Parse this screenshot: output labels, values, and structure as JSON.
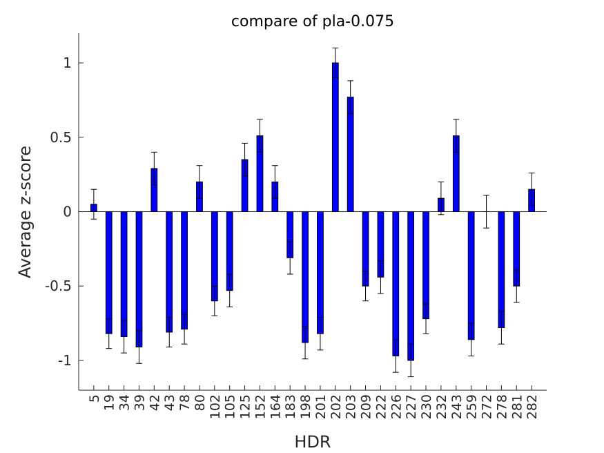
{
  "chart_data": {
    "type": "bar",
    "title": "compare of pla-0.075",
    "xlabel": "HDR",
    "ylabel": "Average z-score",
    "ylim": [
      -1.2,
      1.2
    ],
    "yticks": [
      1,
      0.5,
      0,
      -0.5,
      -1
    ],
    "ytick_labels": [
      "1",
      "0.5",
      "0",
      "-0.5",
      "-1"
    ],
    "categories": [
      "5",
      "19",
      "34",
      "39",
      "42",
      "43",
      "78",
      "80",
      "102",
      "105",
      "125",
      "152",
      "164",
      "183",
      "198",
      "201",
      "202",
      "203",
      "209",
      "222",
      "226",
      "227",
      "230",
      "232",
      "243",
      "259",
      "272",
      "278",
      "281",
      "282"
    ],
    "values": [
      0.05,
      -0.82,
      -0.84,
      -0.91,
      0.29,
      -0.81,
      -0.79,
      0.2,
      -0.6,
      -0.53,
      0.35,
      0.51,
      0.2,
      -0.31,
      -0.88,
      -0.82,
      1.0,
      0.77,
      -0.5,
      -0.44,
      -0.97,
      -1.0,
      -0.72,
      0.09,
      0.51,
      -0.86,
      0.0,
      -0.78,
      -0.5,
      0.15
    ],
    "error": [
      0.1,
      0.1,
      0.11,
      0.11,
      0.11,
      0.1,
      0.1,
      0.11,
      0.1,
      0.11,
      0.11,
      0.11,
      0.11,
      0.11,
      0.11,
      0.11,
      0.1,
      0.11,
      0.1,
      0.11,
      0.11,
      0.11,
      0.1,
      0.11,
      0.11,
      0.11,
      0.11,
      0.11,
      0.11,
      0.11
    ],
    "bar_color": "#0000ff",
    "grid": false,
    "legend": "none"
  }
}
